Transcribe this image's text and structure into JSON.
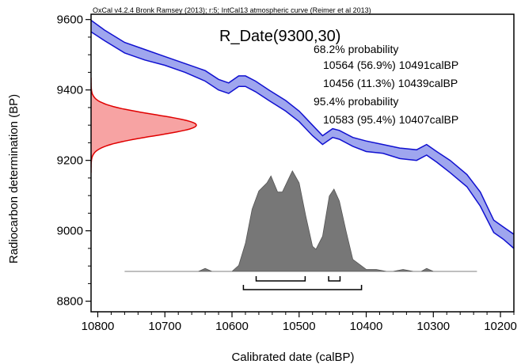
{
  "chart_data": {
    "type": "area",
    "header": "OxCal v4.2.4 Bronk Ramsey (2013); r:5; IntCal13 atmospheric curve (Reimer et al 2013)",
    "title": "R_Date(9300,30)",
    "xlabel": "Calibrated date (calBP)",
    "ylabel": "Radiocarbon determination (BP)",
    "x_axis_reversed": true,
    "xlim": [
      10810,
      10180
    ],
    "ylim": [
      8770,
      9615
    ],
    "x_ticks": [
      10800,
      10700,
      10600,
      10500,
      10400,
      10300,
      10200
    ],
    "y_ticks": [
      8800,
      9000,
      9200,
      9400,
      9600
    ],
    "annotations": [
      "68.2% probability",
      "10564 (56.9%) 10491calBP",
      "10456 (11.3%) 10439calBP",
      "95.4% probability",
      "10583 (95.4%) 10407calBP"
    ],
    "radiocarbon_date": {
      "mean": 9300,
      "sd": 30,
      "color": "#e00000",
      "fill": "#f7a3a3"
    },
    "calibration_curve": {
      "name": "IntCal13",
      "color": "#1010d0",
      "fill": "#9fa6ee",
      "points": [
        {
          "x": 10810,
          "upper": 9598,
          "lower": 9565
        },
        {
          "x": 10790,
          "upper": 9570,
          "lower": 9540
        },
        {
          "x": 10760,
          "upper": 9535,
          "lower": 9505
        },
        {
          "x": 10730,
          "upper": 9515,
          "lower": 9485
        },
        {
          "x": 10700,
          "upper": 9495,
          "lower": 9470
        },
        {
          "x": 10670,
          "upper": 9475,
          "lower": 9450
        },
        {
          "x": 10640,
          "upper": 9455,
          "lower": 9425
        },
        {
          "x": 10620,
          "upper": 9430,
          "lower": 9400
        },
        {
          "x": 10605,
          "upper": 9420,
          "lower": 9390
        },
        {
          "x": 10590,
          "upper": 9440,
          "lower": 9410
        },
        {
          "x": 10580,
          "upper": 9440,
          "lower": 9410
        },
        {
          "x": 10565,
          "upper": 9425,
          "lower": 9395
        },
        {
          "x": 10545,
          "upper": 9400,
          "lower": 9370
        },
        {
          "x": 10520,
          "upper": 9370,
          "lower": 9340
        },
        {
          "x": 10500,
          "upper": 9340,
          "lower": 9310
        },
        {
          "x": 10480,
          "upper": 9300,
          "lower": 9270
        },
        {
          "x": 10465,
          "upper": 9270,
          "lower": 9245
        },
        {
          "x": 10450,
          "upper": 9290,
          "lower": 9265
        },
        {
          "x": 10440,
          "upper": 9285,
          "lower": 9260
        },
        {
          "x": 10420,
          "upper": 9265,
          "lower": 9240
        },
        {
          "x": 10400,
          "upper": 9255,
          "lower": 9225
        },
        {
          "x": 10375,
          "upper": 9245,
          "lower": 9220
        },
        {
          "x": 10350,
          "upper": 9235,
          "lower": 9205
        },
        {
          "x": 10325,
          "upper": 9230,
          "lower": 9200
        },
        {
          "x": 10310,
          "upper": 9245,
          "lower": 9215
        },
        {
          "x": 10295,
          "upper": 9225,
          "lower": 9195
        },
        {
          "x": 10275,
          "upper": 9200,
          "lower": 9165
        },
        {
          "x": 10250,
          "upper": 9160,
          "lower": 9125
        },
        {
          "x": 10230,
          "upper": 9110,
          "lower": 9070
        },
        {
          "x": 10210,
          "upper": 9030,
          "lower": 8995
        },
        {
          "x": 10195,
          "upper": 9010,
          "lower": 8975
        },
        {
          "x": 10180,
          "upper": 8990,
          "lower": 8950
        }
      ]
    },
    "calibrated_distribution": {
      "color": "#777777",
      "relative_height": [
        {
          "x": 10760,
          "h": 0
        },
        {
          "x": 10650,
          "h": 0
        },
        {
          "x": 10640,
          "h": 0.03
        },
        {
          "x": 10630,
          "h": 0
        },
        {
          "x": 10600,
          "h": 0
        },
        {
          "x": 10590,
          "h": 0.06
        },
        {
          "x": 10580,
          "h": 0.28
        },
        {
          "x": 10570,
          "h": 0.62
        },
        {
          "x": 10560,
          "h": 0.8
        },
        {
          "x": 10548,
          "h": 0.88
        },
        {
          "x": 10542,
          "h": 0.95
        },
        {
          "x": 10532,
          "h": 0.79
        },
        {
          "x": 10525,
          "h": 0.79
        },
        {
          "x": 10515,
          "h": 0.93
        },
        {
          "x": 10510,
          "h": 1.0
        },
        {
          "x": 10500,
          "h": 0.88
        },
        {
          "x": 10490,
          "h": 0.55
        },
        {
          "x": 10480,
          "h": 0.25
        },
        {
          "x": 10475,
          "h": 0.22
        },
        {
          "x": 10465,
          "h": 0.35
        },
        {
          "x": 10455,
          "h": 0.75
        },
        {
          "x": 10448,
          "h": 0.82
        },
        {
          "x": 10440,
          "h": 0.7
        },
        {
          "x": 10430,
          "h": 0.4
        },
        {
          "x": 10420,
          "h": 0.12
        },
        {
          "x": 10400,
          "h": 0.02
        },
        {
          "x": 10385,
          "h": 0.02
        },
        {
          "x": 10370,
          "h": 0
        },
        {
          "x": 10360,
          "h": 0
        },
        {
          "x": 10345,
          "h": 0.02
        },
        {
          "x": 10330,
          "h": 0
        },
        {
          "x": 10318,
          "h": 0
        },
        {
          "x": 10310,
          "h": 0.03
        },
        {
          "x": 10300,
          "h": 0
        },
        {
          "x": 10235,
          "h": 0
        }
      ]
    },
    "ranges_68": [
      [
        10564,
        10491
      ],
      [
        10456,
        10439
      ]
    ],
    "ranges_95": [
      [
        10583,
        10407
      ]
    ]
  }
}
